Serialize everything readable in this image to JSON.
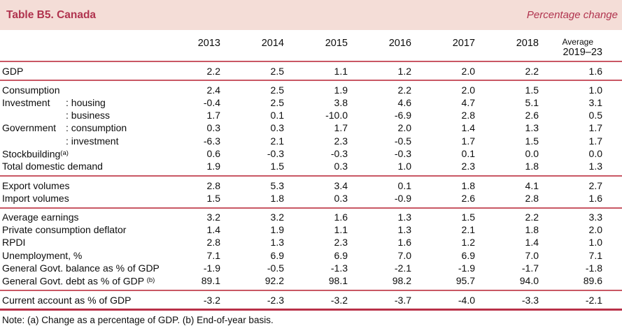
{
  "banner": {
    "title": "Table B5. Canada",
    "subtitle": "Percentage change"
  },
  "colors": {
    "banner_bg": "#f4ddd7",
    "accent": "#b0334e",
    "rule": "#c95764",
    "rule_strong": "#b93148"
  },
  "columns": [
    "2013",
    "2014",
    "2015",
    "2016",
    "2017",
    "2018"
  ],
  "last_column": {
    "line1": "Average",
    "line2": "2019–23"
  },
  "table": {
    "groups": [
      {
        "rows": [
          {
            "label": "GDP",
            "values": [
              "2.2",
              "2.5",
              "1.1",
              "1.2",
              "2.0",
              "2.2",
              "1.6"
            ]
          }
        ]
      },
      {
        "rows": [
          {
            "label": "Consumption",
            "values": [
              "2.4",
              "2.5",
              "1.9",
              "2.2",
              "2.0",
              "1.5",
              "1.0"
            ]
          },
          {
            "cat": "Investment",
            "sub": ": housing",
            "values": [
              "-0.4",
              "2.5",
              "3.8",
              "4.6",
              "4.7",
              "5.1",
              "3.1"
            ]
          },
          {
            "cat": "",
            "sub": ": business",
            "values": [
              "1.7",
              "0.1",
              "-10.0",
              "-6.9",
              "2.8",
              "2.6",
              "0.5"
            ]
          },
          {
            "cat": "Government",
            "sub": ": consumption",
            "values": [
              "0.3",
              "0.3",
              "1.7",
              "2.0",
              "1.4",
              "1.3",
              "1.7"
            ]
          },
          {
            "cat": "",
            "sub": ": investment",
            "values": [
              "-6.3",
              "2.1",
              "2.3",
              "-0.5",
              "1.7",
              "1.5",
              "1.7"
            ]
          },
          {
            "label": "Stockbuilding",
            "sup": "(a)",
            "values": [
              "0.6",
              "-0.3",
              "-0.3",
              "-0.3",
              "0.1",
              "0.0",
              "0.0"
            ]
          },
          {
            "label": "Total domestic demand",
            "values": [
              "1.9",
              "1.5",
              "0.3",
              "1.0",
              "2.3",
              "1.8",
              "1.3"
            ]
          }
        ]
      },
      {
        "rows": [
          {
            "label": "Export volumes",
            "values": [
              "2.8",
              "5.3",
              "3.4",
              "0.1",
              "1.8",
              "4.1",
              "2.7"
            ]
          },
          {
            "label": "Import volumes",
            "values": [
              "1.5",
              "1.8",
              "0.3",
              "-0.9",
              "2.6",
              "2.8",
              "1.6"
            ]
          }
        ]
      },
      {
        "rows": [
          {
            "label": "Average earnings",
            "values": [
              "3.2",
              "3.2",
              "1.6",
              "1.3",
              "1.5",
              "2.2",
              "3.3"
            ]
          },
          {
            "label": "Private consumption deflator",
            "values": [
              "1.4",
              "1.9",
              "1.1",
              "1.3",
              "2.1",
              "1.8",
              "2.0"
            ]
          },
          {
            "label": "RPDI",
            "values": [
              "2.8",
              "1.3",
              "2.3",
              "1.6",
              "1.2",
              "1.4",
              "1.0"
            ]
          },
          {
            "label": "Unemployment, %",
            "values": [
              "7.1",
              "6.9",
              "6.9",
              "7.0",
              "6.9",
              "7.0",
              "7.1"
            ]
          },
          {
            "label": "General Govt. balance as % of GDP",
            "values": [
              "-1.9",
              "-0.5",
              "-1.3",
              "-2.1",
              "-1.9",
              "-1.7",
              "-1.8"
            ]
          },
          {
            "label": "General Govt. debt as % of GDP ",
            "sup": "(b)",
            "values": [
              "89.1",
              "92.2",
              "98.1",
              "98.2",
              "95.7",
              "94.0",
              "89.6"
            ]
          }
        ]
      },
      {
        "rows": [
          {
            "label": "Current account as % of GDP",
            "values": [
              "-3.2",
              "-2.3",
              "-3.2",
              "-3.7",
              "-4.0",
              "-3.3",
              "-2.1"
            ]
          }
        ]
      }
    ]
  },
  "note": "Note: (a) Change as a percentage of GDP. (b) End-of-year basis."
}
